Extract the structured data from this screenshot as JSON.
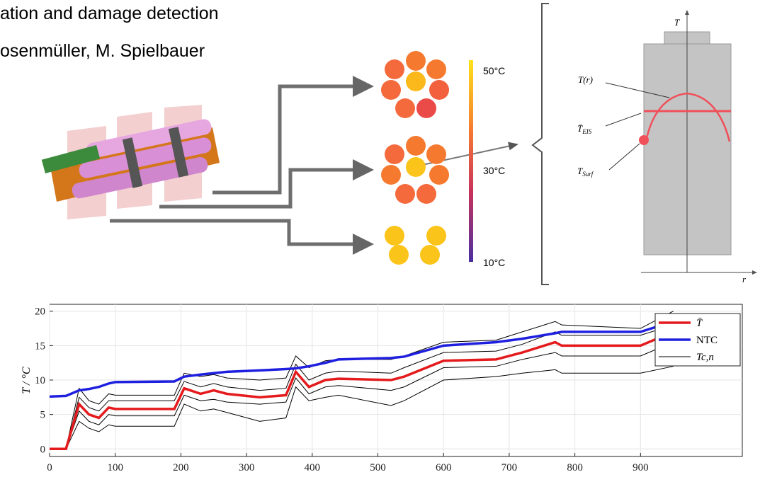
{
  "header": {
    "line1": "ation and damage detection",
    "line2": "osenmüller, M. Spielbauer"
  },
  "colorbar": {
    "top": "50°C",
    "middle": "30°C",
    "bottom": "10°C"
  },
  "cell_diagram": {
    "y_axis": "T",
    "x_axis": "r",
    "profile": "T(r)",
    "mean": {
      "main": "T̄",
      "sub": "EIS"
    },
    "surface": {
      "main": "T",
      "sub": "Surf"
    }
  },
  "chart_data": {
    "type": "line",
    "y_label": "T / °C",
    "x": [
      0,
      25,
      45,
      60,
      75,
      90,
      100,
      190,
      205,
      230,
      250,
      270,
      320,
      360,
      375,
      395,
      420,
      440,
      520,
      540,
      600,
      680,
      720,
      770,
      780,
      900,
      950
    ],
    "series": [
      {
        "name": "T̄",
        "color": "#e41a1c",
        "width": 3.5,
        "values": [
          0,
          0,
          6.5,
          5,
          4.5,
          6,
          5.8,
          5.8,
          8.8,
          8,
          8.5,
          8,
          7.5,
          7.8,
          11.2,
          9,
          10,
          10.2,
          10,
          10.5,
          12.8,
          13,
          14,
          15.5,
          15,
          15,
          17
        ]
      },
      {
        "name": "NTC",
        "color": "#1f1fe0",
        "width": 3.5,
        "values": [
          7.6,
          7.7,
          8.5,
          8.7,
          9,
          9.5,
          9.7,
          9.8,
          10.5,
          10.8,
          11,
          11.2,
          11.4,
          11.6,
          11.7,
          12,
          12.5,
          13,
          13.2,
          13.4,
          15,
          15.5,
          16,
          16.8,
          17,
          17,
          18.5
        ]
      },
      {
        "name": "Tc,n",
        "color": "#000000",
        "width": 1,
        "values": [
          [
            0,
            0,
            8.8,
            7,
            6.5,
            8,
            7.8,
            7.8,
            11,
            10.5,
            10.8,
            10.3,
            10,
            10.3,
            13.5,
            11.8,
            12.8,
            13,
            13,
            13.5,
            15.5,
            15.8,
            17,
            18.5,
            18,
            17.5,
            20
          ],
          [
            0,
            0,
            7.5,
            6,
            5.5,
            7,
            7,
            7,
            9.8,
            9,
            9.5,
            9,
            8.5,
            8.8,
            12.3,
            10,
            11,
            11.3,
            11,
            11.8,
            14,
            14.2,
            15.2,
            17,
            16.5,
            16.5,
            18
          ],
          [
            0,
            0,
            5.5,
            4,
            3.5,
            5,
            4.8,
            4.8,
            7.8,
            7,
            7.2,
            6.8,
            6.5,
            6.8,
            10.3,
            8,
            9,
            9.2,
            8.5,
            9,
            11.8,
            12,
            13,
            14,
            13.5,
            13.5,
            15.5
          ],
          [
            0,
            0,
            4,
            3,
            2.5,
            3.5,
            3.3,
            3.3,
            6.5,
            5.5,
            5.8,
            5.3,
            4,
            4.5,
            9,
            7,
            7.5,
            7.8,
            6.3,
            7,
            10,
            10.5,
            11,
            11.5,
            11,
            11,
            12
          ]
        ]
      }
    ],
    "xlim": [
      0,
      1055
    ],
    "ylim": [
      -1.1,
      21
    ],
    "xticks": [
      0,
      100,
      200,
      300,
      400,
      500,
      600,
      700,
      800,
      900
    ],
    "yticks": [
      0,
      5,
      10,
      15,
      20
    ],
    "grid": true,
    "legend": "top-right"
  }
}
